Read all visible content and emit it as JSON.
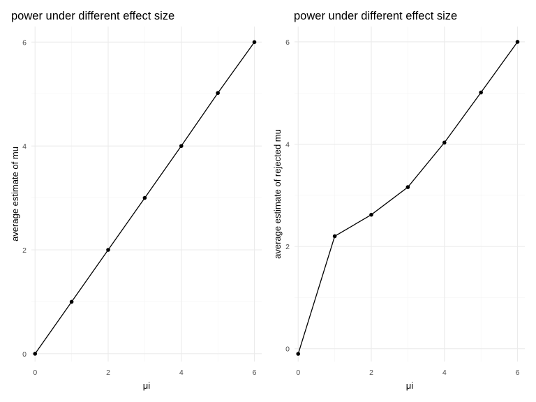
{
  "chart_data": [
    {
      "type": "line",
      "title": "power under different effect size",
      "xlabel": "μi",
      "ylabel": "average estimate of mu",
      "x": [
        0,
        1,
        2,
        3,
        4,
        5,
        6
      ],
      "series": [
        {
          "values": [
            0.0,
            1.0,
            2.0,
            3.0,
            4.0,
            5.02,
            6.0
          ]
        }
      ],
      "xlim": [
        -0.1,
        6.2
      ],
      "ylim": [
        -0.15,
        6.3
      ],
      "xticks": [
        0,
        2,
        4,
        6
      ],
      "yticks": [
        0,
        2,
        4,
        6
      ],
      "grid": true,
      "legend": "none"
    },
    {
      "type": "line",
      "title": "power under different effect size",
      "xlabel": "μi",
      "ylabel": "average estimate of rejected mu",
      "x": [
        0,
        1,
        2,
        3,
        4,
        5,
        6
      ],
      "series": [
        {
          "values": [
            -0.1,
            2.2,
            2.62,
            3.16,
            4.03,
            5.01,
            6.0
          ]
        }
      ],
      "xlim": [
        -0.1,
        6.2
      ],
      "ylim": [
        -0.25,
        6.3
      ],
      "xticks": [
        0,
        2,
        4,
        6
      ],
      "yticks": [
        0,
        2,
        4,
        6
      ],
      "grid": true,
      "legend": "none"
    }
  ]
}
